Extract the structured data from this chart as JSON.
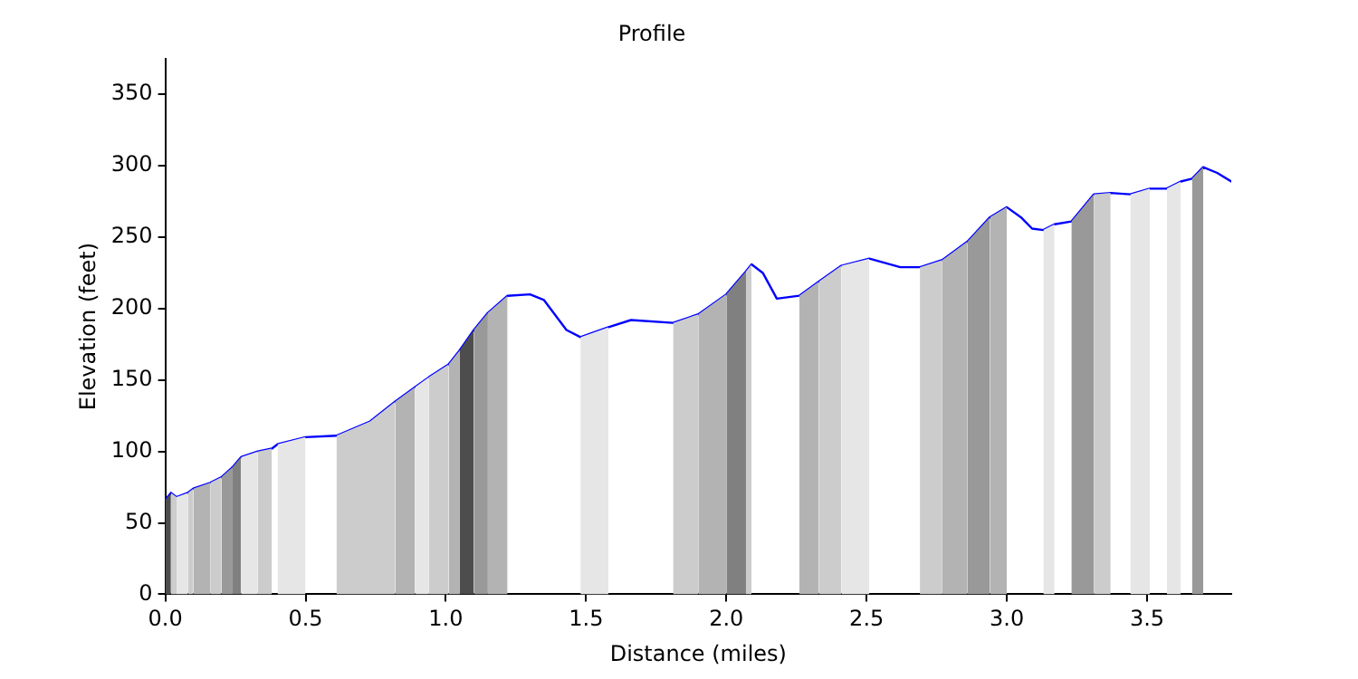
{
  "chart_data": {
    "type": "area",
    "title": "Profile",
    "xlabel": "Distance (miles)",
    "ylabel": "Elevation (feet)",
    "xlim": [
      0,
      3.8
    ],
    "ylim": [
      0,
      375
    ],
    "xticks": [
      {
        "value": 0,
        "label": "0.0"
      },
      {
        "value": 0.5,
        "label": "0.5"
      },
      {
        "value": 1,
        "label": "1.0"
      },
      {
        "value": 1.5,
        "label": "1.5"
      },
      {
        "value": 2,
        "label": "2.0"
      },
      {
        "value": 2.5,
        "label": "2.5"
      },
      {
        "value": 3,
        "label": "3.0"
      },
      {
        "value": 3.5,
        "label": "3.5"
      }
    ],
    "yticks": [
      0,
      50,
      100,
      150,
      200,
      250,
      300,
      350
    ],
    "grid": false,
    "legend": false,
    "marker": "none",
    "line_style": "solid",
    "series": [
      {
        "type": "area",
        "color": "#4d4d4d",
        "x": [
          0,
          0.02
        ],
        "values": [
          66,
          71
        ]
      },
      {
        "type": "area",
        "color": "#cccccc",
        "x": [
          0.02,
          0.04
        ],
        "values": [
          71,
          68
        ]
      },
      {
        "type": "area",
        "color": "#e6e6e6",
        "x": [
          0.04,
          0.08
        ],
        "values": [
          68,
          71
        ]
      },
      {
        "type": "area",
        "color": "#cccccc",
        "x": [
          0.08,
          0.1
        ],
        "values": [
          71,
          74
        ]
      },
      {
        "type": "area",
        "color": "#b3b3b3",
        "x": [
          0.1,
          0.16
        ],
        "values": [
          74,
          78
        ]
      },
      {
        "type": "area",
        "color": "#cccccc",
        "x": [
          0.16,
          0.2
        ],
        "values": [
          78,
          82
        ]
      },
      {
        "type": "area",
        "color": "#999999",
        "x": [
          0.2,
          0.24
        ],
        "values": [
          82,
          89
        ]
      },
      {
        "type": "area",
        "color": "#808080",
        "x": [
          0.24,
          0.27
        ],
        "values": [
          89,
          96
        ]
      },
      {
        "type": "area",
        "color": "#e6e6e6",
        "x": [
          0.27,
          0.33
        ],
        "values": [
          96,
          100
        ]
      },
      {
        "type": "area",
        "color": "#cccccc",
        "x": [
          0.33,
          0.38
        ],
        "values": [
          100,
          102
        ]
      },
      {
        "type": "area",
        "color": "#e6e6e6",
        "x": [
          0.4,
          0.5
        ],
        "values": [
          105,
          110
        ]
      },
      {
        "type": "area",
        "color": "#cccccc",
        "x": [
          0.61,
          0.73,
          0.82
        ],
        "values": [
          111,
          121,
          135
        ]
      },
      {
        "type": "area",
        "color": "#b3b3b3",
        "x": [
          0.82,
          0.89
        ],
        "values": [
          135,
          145
        ]
      },
      {
        "type": "area",
        "color": "#e6e6e6",
        "x": [
          0.89,
          0.94
        ],
        "values": [
          145,
          152
        ]
      },
      {
        "type": "area",
        "color": "#cccccc",
        "x": [
          0.94,
          1.01
        ],
        "values": [
          152,
          161
        ]
      },
      {
        "type": "area",
        "color": "#b3b3b3",
        "x": [
          1.01,
          1.05
        ],
        "values": [
          161,
          171
        ]
      },
      {
        "type": "area",
        "color": "#4d4d4d",
        "x": [
          1.05,
          1.1
        ],
        "values": [
          171,
          185
        ]
      },
      {
        "type": "area",
        "color": "#999999",
        "x": [
          1.1,
          1.15
        ],
        "values": [
          185,
          197
        ]
      },
      {
        "type": "area",
        "color": "#b3b3b3",
        "x": [
          1.15,
          1.22
        ],
        "values": [
          197,
          209
        ]
      },
      {
        "type": "area",
        "color": "#e6e6e6",
        "x": [
          1.48,
          1.58
        ],
        "values": [
          180,
          187
        ]
      },
      {
        "type": "area",
        "color": "#cccccc",
        "x": [
          1.81,
          1.9
        ],
        "values": [
          190,
          196
        ]
      },
      {
        "type": "area",
        "color": "#b3b3b3",
        "x": [
          1.9,
          2.0
        ],
        "values": [
          196,
          210
        ]
      },
      {
        "type": "area",
        "color": "#808080",
        "x": [
          2.0,
          2.07
        ],
        "values": [
          210,
          226
        ]
      },
      {
        "type": "area",
        "color": "#cccccc",
        "x": [
          2.07,
          2.09
        ],
        "values": [
          226,
          231
        ]
      },
      {
        "type": "area",
        "color": "#b3b3b3",
        "x": [
          2.26,
          2.33
        ],
        "values": [
          209,
          219
        ]
      },
      {
        "type": "area",
        "color": "#cccccc",
        "x": [
          2.33,
          2.41
        ],
        "values": [
          219,
          230
        ]
      },
      {
        "type": "area",
        "color": "#e6e6e6",
        "x": [
          2.41,
          2.51
        ],
        "values": [
          230,
          235
        ]
      },
      {
        "type": "area",
        "color": "#cccccc",
        "x": [
          2.69,
          2.77
        ],
        "values": [
          229,
          234
        ]
      },
      {
        "type": "area",
        "color": "#b3b3b3",
        "x": [
          2.77,
          2.86
        ],
        "values": [
          234,
          247
        ]
      },
      {
        "type": "area",
        "color": "#999999",
        "x": [
          2.86,
          2.94
        ],
        "values": [
          247,
          264
        ]
      },
      {
        "type": "area",
        "color": "#b3b3b3",
        "x": [
          2.94,
          3.0
        ],
        "values": [
          264,
          271
        ]
      },
      {
        "type": "area",
        "color": "#e6e6e6",
        "x": [
          3.13,
          3.17
        ],
        "values": [
          255,
          259
        ]
      },
      {
        "type": "area",
        "color": "#999999",
        "x": [
          3.23,
          3.31
        ],
        "values": [
          261,
          280
        ]
      },
      {
        "type": "area",
        "color": "#cccccc",
        "x": [
          3.31,
          3.37
        ],
        "values": [
          280,
          281
        ]
      },
      {
        "type": "area",
        "color": "#e6e6e6",
        "x": [
          3.44,
          3.51
        ],
        "values": [
          280,
          284
        ]
      },
      {
        "type": "area",
        "color": "#e6e6e6",
        "x": [
          3.57,
          3.62
        ],
        "values": [
          284,
          289
        ]
      },
      {
        "type": "area",
        "color": "#999999",
        "x": [
          3.66,
          3.7
        ],
        "values": [
          291,
          299
        ]
      },
      {
        "type": "line",
        "color": "#0000ff",
        "x": [
          0,
          0.02,
          0.04,
          0.08,
          0.1,
          0.16,
          0.2,
          0.24,
          0.27,
          0.33,
          0.38,
          0.4,
          0.5,
          0.61,
          0.73,
          0.82,
          0.89,
          0.94,
          1.01,
          1.05,
          1.1,
          1.15,
          1.22,
          1.3,
          1.35,
          1.43,
          1.48,
          1.58,
          1.66,
          1.81,
          1.9,
          2.0,
          2.07,
          2.09,
          2.13,
          2.18,
          2.26,
          2.33,
          2.41,
          2.51,
          2.62,
          2.69,
          2.77,
          2.86,
          2.94,
          3.0,
          3.05,
          3.09,
          3.13,
          3.17,
          3.23,
          3.31,
          3.37,
          3.44,
          3.51,
          3.57,
          3.62,
          3.66,
          3.7,
          3.75,
          3.8
        ],
        "values": [
          66,
          71,
          68,
          71,
          74,
          78,
          82,
          89,
          96,
          100,
          102,
          105,
          110,
          111,
          121,
          135,
          145,
          152,
          161,
          171,
          185,
          197,
          209,
          210,
          206,
          185,
          180,
          187,
          192,
          190,
          196,
          210,
          226,
          231,
          225,
          207,
          209,
          219,
          230,
          235,
          229,
          229,
          234,
          247,
          264,
          271,
          264,
          256,
          255,
          259,
          261,
          280,
          281,
          280,
          284,
          284,
          289,
          291,
          299,
          295,
          289
        ]
      }
    ]
  }
}
